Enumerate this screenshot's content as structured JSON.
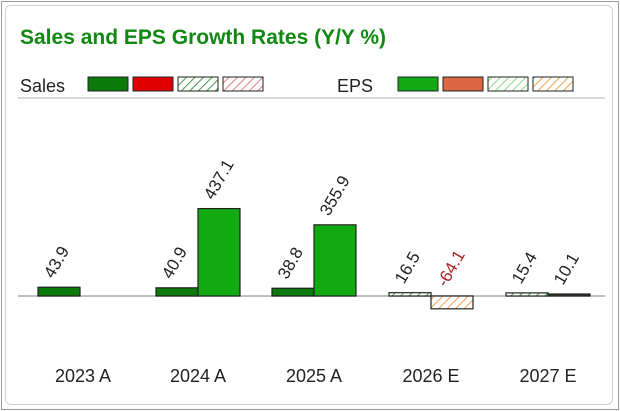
{
  "chart_data": {
    "type": "bar",
    "title": "Sales and EPS Growth Rates (Y/Y %)",
    "categories": [
      "2023  A",
      "2024  A",
      "2025  A",
      "2026  E",
      "2027  E"
    ],
    "legend": {
      "sales_label": "Sales",
      "eps_label": "EPS",
      "sales_swatches": [
        "#0a7a0a",
        "#e00000",
        "hatched-green",
        "hatched-red"
      ],
      "eps_swatches": [
        "#11aa11",
        "#dd6644",
        "hatched-lightgreen",
        "hatched-orange"
      ],
      "placement": "top"
    },
    "series": [
      {
        "name": "Sales",
        "values": [
          43.9,
          40.9,
          38.8,
          16.5,
          15.4
        ],
        "labels": [
          "43.9",
          "40.9",
          "38.8",
          "16.5",
          "15.4"
        ]
      },
      {
        "name": "EPS",
        "values": [
          null,
          437.1,
          355.9,
          -64.1,
          10.1
        ],
        "labels": [
          "",
          "437.1",
          "355.9",
          "-64.1",
          "10.1"
        ]
      }
    ],
    "colors": {
      "title": "#118811",
      "sales_actual": "#0a7a0a",
      "eps_actual": "#11aa11",
      "negative_label": "#aa2222",
      "estimate_hatch_sales": "#4a9a4a",
      "estimate_hatch_eps": "#f0a050"
    },
    "grid": false
  }
}
